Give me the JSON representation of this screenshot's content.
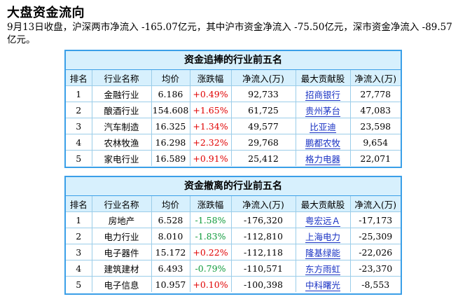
{
  "page": {
    "title": "大盘资金流向",
    "summary": "9月13日收盘，沪深两市净流入 -165.07亿元，其中沪市资金净流入 -75.50亿元，深市资金净流入 -89.57亿元。"
  },
  "columns": [
    "排名",
    "行业名称",
    "均价",
    "涨跌幅",
    "净流入(万)",
    "最大贡献股",
    "净流入(万)"
  ],
  "colors": {
    "up": "#e00000",
    "down": "#109b3c",
    "link": "#1a33c4",
    "border": "#3a9fe8",
    "header_bg": "#d7f0fd"
  },
  "tables": [
    {
      "title": "资金追捧的行业前五名",
      "rows": [
        {
          "rank": "1",
          "industry": "金融行业",
          "avg": "6.186",
          "change": "+0.49%",
          "dir": "up",
          "inflow": "92,733",
          "stock": "招商银行",
          "stock_inflow": "27,778"
        },
        {
          "rank": "2",
          "industry": "酿酒行业",
          "avg": "154.608",
          "change": "+1.65%",
          "dir": "up",
          "inflow": "61,725",
          "stock": "贵州茅台",
          "stock_inflow": "47,083"
        },
        {
          "rank": "3",
          "industry": "汽车制造",
          "avg": "16.325",
          "change": "+1.34%",
          "dir": "up",
          "inflow": "49,577",
          "stock": "比亚迪",
          "stock_inflow": "23,598"
        },
        {
          "rank": "4",
          "industry": "农林牧渔",
          "avg": "16.298",
          "change": "+2.32%",
          "dir": "up",
          "inflow": "29,768",
          "stock": "鹏都农牧",
          "stock_inflow": "9,654"
        },
        {
          "rank": "5",
          "industry": "家电行业",
          "avg": "16.589",
          "change": "+0.91%",
          "dir": "up",
          "inflow": "25,412",
          "stock": "格力电器",
          "stock_inflow": "22,071"
        }
      ]
    },
    {
      "title": "资金撤离的行业前五名",
      "rows": [
        {
          "rank": "1",
          "industry": "房地产",
          "avg": "6.528",
          "change": "-1.58%",
          "dir": "down",
          "inflow": "-176,320",
          "stock": "粤宏远Ａ",
          "stock_inflow": "-17,173"
        },
        {
          "rank": "2",
          "industry": "电力行业",
          "avg": "8.010",
          "change": "-1.83%",
          "dir": "down",
          "inflow": "-112,810",
          "stock": "上海电力",
          "stock_inflow": "-25,309"
        },
        {
          "rank": "3",
          "industry": "电子器件",
          "avg": "15.172",
          "change": "+0.22%",
          "dir": "up",
          "inflow": "-112,118",
          "stock": "隆基绿能",
          "stock_inflow": "-22,026"
        },
        {
          "rank": "4",
          "industry": "建筑建材",
          "avg": "6.493",
          "change": "-0.79%",
          "dir": "down",
          "inflow": "-110,571",
          "stock": "东方雨虹",
          "stock_inflow": "-23,370"
        },
        {
          "rank": "5",
          "industry": "电子信息",
          "avg": "10.957",
          "change": "+0.10%",
          "dir": "up",
          "inflow": "-100,398",
          "stock": "中科曙光",
          "stock_inflow": "-8,553"
        }
      ]
    }
  ]
}
